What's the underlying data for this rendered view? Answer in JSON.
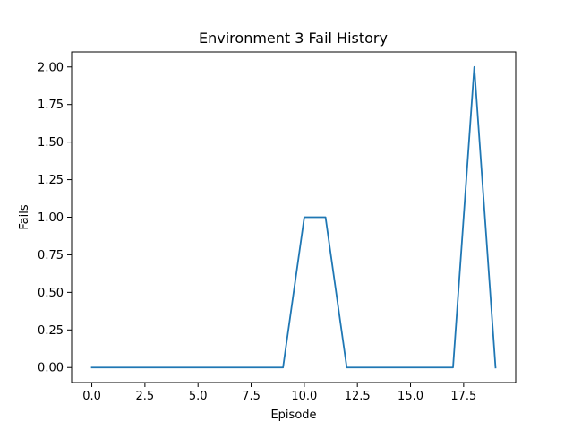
{
  "chart_data": {
    "type": "line",
    "title": "Environment 3 Fail History",
    "xlabel": "Episode",
    "ylabel": "Fails",
    "xlim": [
      -0.95,
      19.95
    ],
    "ylim": [
      -0.1,
      2.1
    ],
    "x_ticks": [
      "0.0",
      "2.5",
      "5.0",
      "7.5",
      "10.0",
      "12.5",
      "15.0",
      "17.5"
    ],
    "y_ticks": [
      "0.00",
      "0.25",
      "0.50",
      "0.75",
      "1.00",
      "1.25",
      "1.50",
      "1.75",
      "2.00"
    ],
    "grid": false,
    "series": [
      {
        "color": "#1f77b4",
        "x": [
          0,
          1,
          2,
          3,
          4,
          5,
          6,
          7,
          8,
          9,
          10,
          11,
          12,
          13,
          14,
          15,
          16,
          17,
          18,
          19
        ],
        "values": [
          0,
          0,
          0,
          0,
          0,
          0,
          0,
          0,
          0,
          0,
          1,
          1,
          0,
          0,
          0,
          0,
          0,
          0,
          2,
          0
        ]
      }
    ]
  }
}
